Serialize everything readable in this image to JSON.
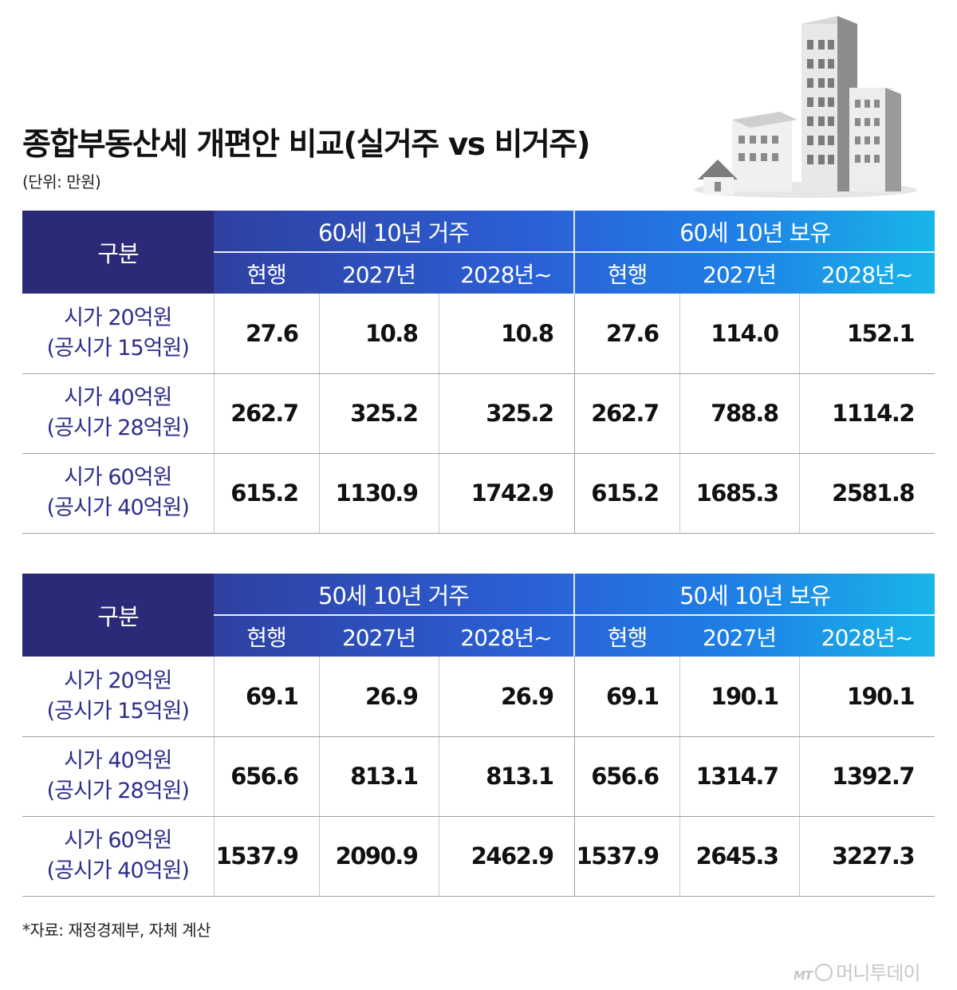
{
  "title": "종합부동산세 개편안 비교(실거주 vs 비거주)",
  "unit": "(단위: 만원)",
  "source": "*자료: 재정경제부, 자체 계산",
  "logo": {
    "mark": "MT",
    "name": "머니투데이"
  },
  "colors": {
    "header_dark": "#2b2a78",
    "header_light": "#18b6e8",
    "label_text": "#2e2c8a"
  },
  "illustration_icon": "buildings-and-house-icon",
  "tables": [
    {
      "category_header": "구분",
      "group_a": "60세 10년 거주",
      "group_b": "60세 10년 보유",
      "subheaders": [
        "현행",
        "2027년",
        "2028년~",
        "현행",
        "2027년",
        "2028년~"
      ],
      "rows": [
        {
          "line1": "시가 20억원",
          "line2": "(공시가 15억원)",
          "values": [
            "27.6",
            "10.8",
            "10.8",
            "27.6",
            "114.0",
            "152.1"
          ]
        },
        {
          "line1": "시가 40억원",
          "line2": "(공시가 28억원)",
          "values": [
            "262.7",
            "325.2",
            "325.2",
            "262.7",
            "788.8",
            "1114.2"
          ]
        },
        {
          "line1": "시가 60억원",
          "line2": "(공시가 40억원)",
          "values": [
            "615.2",
            "1130.9",
            "1742.9",
            "615.2",
            "1685.3",
            "2581.8"
          ]
        }
      ]
    },
    {
      "category_header": "구분",
      "group_a": "50세 10년 거주",
      "group_b": "50세 10년 보유",
      "subheaders": [
        "현행",
        "2027년",
        "2028년~",
        "현행",
        "2027년",
        "2028년~"
      ],
      "rows": [
        {
          "line1": "시가 20억원",
          "line2": "(공시가 15억원)",
          "values": [
            "69.1",
            "26.9",
            "26.9",
            "69.1",
            "190.1",
            "190.1"
          ]
        },
        {
          "line1": "시가 40억원",
          "line2": "(공시가 28억원)",
          "values": [
            "656.6",
            "813.1",
            "813.1",
            "656.6",
            "1314.7",
            "1392.7"
          ]
        },
        {
          "line1": "시가 60억원",
          "line2": "(공시가 40억원)",
          "values": [
            "1537.9",
            "2090.9",
            "2462.9",
            "1537.9",
            "2645.3",
            "3227.3"
          ]
        }
      ]
    }
  ]
}
